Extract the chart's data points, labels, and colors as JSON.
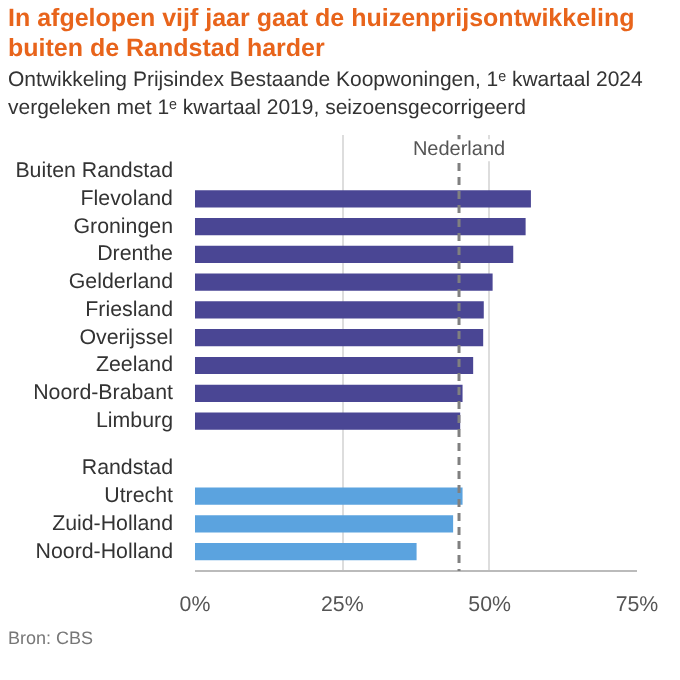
{
  "chart_data": {
    "type": "bar",
    "orientation": "horizontal",
    "title": "In afgelopen vijf jaar gaat de huizenprijsontwikkeling buiten de Randstad harder",
    "subtitle": "Ontwikkeling Prijsindex Bestaande Koopwoningen, 1ᵉ kwartaal 2024 vergeleken met 1ᵉ kwartaal 2019, seizoensgecorrigeerd",
    "categories": [
      "Buiten Randstad",
      "Flevoland",
      "Groningen",
      "Drenthe",
      "Gelderland",
      "Friesland",
      "Overijssel",
      "Zeeland",
      "Noord-Brabant",
      "Limburg",
      "Randstad",
      "Utrecht",
      "Zuid-Holland",
      "Noord-Holland"
    ],
    "values": [
      null,
      57.0,
      56.1,
      54.0,
      50.5,
      49.0,
      48.9,
      47.2,
      45.4,
      45.0,
      null,
      45.4,
      43.8,
      37.6
    ],
    "colors": [
      null,
      "#4a4694",
      "#4a4694",
      "#4a4694",
      "#4a4694",
      "#4a4694",
      "#4a4694",
      "#4a4694",
      "#4a4694",
      "#4a4694",
      null,
      "#5ba3df",
      "#5ba3df",
      "#5ba3df"
    ],
    "xlim": [
      0,
      75
    ],
    "xticks": [
      {
        "value": 0,
        "label": "0%"
      },
      {
        "value": 25,
        "label": "25%"
      },
      {
        "value": 50,
        "label": "50%"
      },
      {
        "value": 75,
        "label": "75%"
      }
    ],
    "grid": "x",
    "ref_lines": [
      {
        "axis": "x",
        "value": 44.8,
        "label": "Nederland",
        "color": "#808080",
        "line_style": "dashed"
      }
    ],
    "annotations": [
      "Bron: CBS"
    ]
  }
}
